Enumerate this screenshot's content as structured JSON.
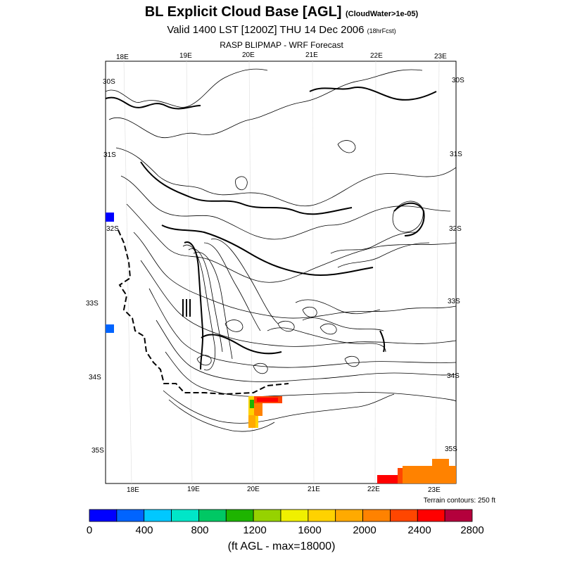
{
  "header": {
    "title": "BL Explicit Cloud Base [AGL]",
    "title_note": "(CloudWater>1e-05)",
    "subtitle": "Valid 1400 LST [1200Z] THU 14 Dec 2006",
    "subtitle_note": "(18hrFcst)",
    "model": "RASP BLIPMAP - WRF Forecast"
  },
  "map": {
    "top_lon_labels": [
      "18E",
      "19E",
      "20E",
      "21E",
      "22E",
      "23E"
    ],
    "bottom_lon_labels": [
      "18E",
      "19E",
      "20E",
      "21E",
      "22E",
      "23E"
    ],
    "left_lat_labels": [
      "30S",
      "31S",
      "32S",
      "33S",
      "34S",
      "35S"
    ],
    "right_lat_labels": [
      "30S",
      "31S",
      "32S",
      "33S",
      "34S",
      "35S"
    ],
    "terrain_note": "Terrain contours: 250 ft"
  },
  "colorbar": {
    "colors": [
      "#0000ff",
      "#0064ff",
      "#00c8ff",
      "#00e6c8",
      "#00c864",
      "#1eb400",
      "#96d200",
      "#f0f000",
      "#ffd200",
      "#ffaa00",
      "#ff8200",
      "#ff4600",
      "#ff0000",
      "#b4003c"
    ],
    "tick_labels": [
      "0",
      "400",
      "800",
      "1200",
      "1600",
      "2000",
      "2400",
      "2800"
    ],
    "units": "(ft AGL - max=18000)"
  }
}
